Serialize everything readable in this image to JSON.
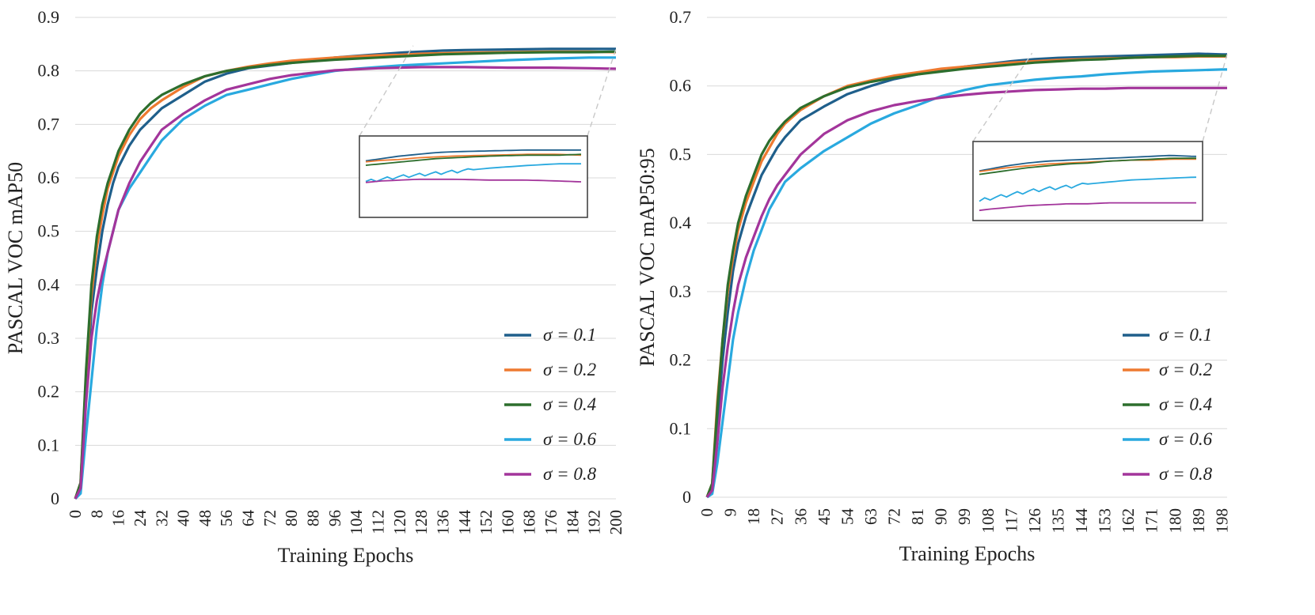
{
  "colors": {
    "s01": "#1f5f8b",
    "s02": "#ee7a30",
    "s04": "#2d6e2d",
    "s06": "#29a9df",
    "s08": "#a3359b",
    "grid": "#d9d9d9",
    "inset_border": "#444444",
    "connector": "#c8c8c8"
  },
  "chart_data": [
    {
      "type": "line",
      "ylabel": "PASCAL VOC mAP50",
      "xlabel": "Training Epochs",
      "ylim": [
        0,
        0.9
      ],
      "xlim": [
        0,
        200
      ],
      "yticks": [
        "0",
        "0.1",
        "0.2",
        "0.3",
        "0.4",
        "0.5",
        "0.6",
        "0.7",
        "0.8",
        "0.9"
      ],
      "xticks": [
        "0",
        "8",
        "16",
        "24",
        "32",
        "40",
        "48",
        "56",
        "64",
        "72",
        "80",
        "88",
        "96",
        "104",
        "112",
        "120",
        "128",
        "136",
        "144",
        "152",
        "160",
        "168",
        "176",
        "184",
        "192",
        "200"
      ],
      "grid": true,
      "legend_position": "bottom-right",
      "inset": {
        "x_range": [
          105,
          200
        ],
        "y_range": [
          0.77,
          0.85
        ]
      },
      "series": [
        {
          "name": "σ = 0.1",
          "color_key": "s01",
          "x": [
            0,
            2,
            4,
            6,
            8,
            10,
            12,
            14,
            16,
            20,
            24,
            28,
            32,
            40,
            48,
            56,
            64,
            72,
            80,
            96,
            104,
            112,
            120,
            128,
            136,
            144,
            160,
            176,
            190,
            200
          ],
          "y": [
            0,
            0.02,
            0.2,
            0.35,
            0.43,
            0.5,
            0.55,
            0.59,
            0.62,
            0.66,
            0.69,
            0.71,
            0.73,
            0.755,
            0.78,
            0.795,
            0.805,
            0.81,
            0.815,
            0.825,
            0.828,
            0.831,
            0.834,
            0.836,
            0.838,
            0.839,
            0.84,
            0.841,
            0.841,
            0.841
          ]
        },
        {
          "name": "σ = 0.2",
          "color_key": "s02",
          "x": [
            0,
            2,
            4,
            6,
            8,
            10,
            12,
            14,
            16,
            20,
            24,
            28,
            32,
            40,
            48,
            56,
            64,
            72,
            80,
            96,
            104,
            112,
            120,
            128,
            136,
            144,
            160,
            176,
            190,
            200
          ],
          "y": [
            0,
            0.03,
            0.23,
            0.38,
            0.47,
            0.53,
            0.58,
            0.61,
            0.64,
            0.68,
            0.71,
            0.73,
            0.745,
            0.77,
            0.79,
            0.8,
            0.808,
            0.814,
            0.819,
            0.825,
            0.827,
            0.829,
            0.83,
            0.832,
            0.833,
            0.834,
            0.835,
            0.836,
            0.836,
            0.835
          ]
        },
        {
          "name": "σ = 0.4",
          "color_key": "s04",
          "x": [
            0,
            2,
            4,
            6,
            8,
            10,
            12,
            14,
            16,
            20,
            24,
            28,
            32,
            40,
            48,
            56,
            64,
            72,
            80,
            96,
            104,
            112,
            120,
            128,
            136,
            144,
            160,
            176,
            190,
            200
          ],
          "y": [
            0,
            0.03,
            0.24,
            0.4,
            0.49,
            0.55,
            0.59,
            0.62,
            0.65,
            0.69,
            0.72,
            0.74,
            0.755,
            0.775,
            0.79,
            0.8,
            0.806,
            0.811,
            0.815,
            0.821,
            0.823,
            0.825,
            0.827,
            0.829,
            0.831,
            0.832,
            0.834,
            0.835,
            0.835,
            0.836
          ]
        },
        {
          "name": "σ = 0.6",
          "color_key": "s06",
          "x": [
            0,
            2,
            4,
            6,
            8,
            10,
            12,
            14,
            16,
            20,
            24,
            28,
            32,
            40,
            48,
            56,
            64,
            72,
            80,
            96,
            104,
            112,
            120,
            128,
            136,
            144,
            160,
            176,
            190,
            200
          ],
          "y": [
            0,
            0.01,
            0.12,
            0.22,
            0.32,
            0.4,
            0.46,
            0.5,
            0.54,
            0.58,
            0.61,
            0.64,
            0.67,
            0.71,
            0.735,
            0.755,
            0.765,
            0.775,
            0.785,
            0.8,
            0.804,
            0.807,
            0.81,
            0.812,
            0.814,
            0.816,
            0.82,
            0.823,
            0.825,
            0.825
          ]
        },
        {
          "name": "σ = 0.8",
          "color_key": "s08",
          "x": [
            0,
            2,
            4,
            6,
            8,
            10,
            12,
            14,
            16,
            20,
            24,
            28,
            32,
            40,
            48,
            56,
            64,
            72,
            80,
            96,
            104,
            112,
            120,
            128,
            136,
            144,
            160,
            176,
            190,
            200
          ],
          "y": [
            0,
            0.02,
            0.18,
            0.3,
            0.37,
            0.42,
            0.46,
            0.5,
            0.54,
            0.59,
            0.63,
            0.66,
            0.69,
            0.72,
            0.745,
            0.765,
            0.775,
            0.785,
            0.792,
            0.801,
            0.803,
            0.805,
            0.806,
            0.807,
            0.807,
            0.807,
            0.806,
            0.806,
            0.805,
            0.804
          ]
        }
      ],
      "legend": [
        "σ = 0.1",
        "σ = 0.2",
        "σ = 0.4",
        "σ = 0.6",
        "σ = 0.8"
      ]
    },
    {
      "type": "line",
      "ylabel": "PASCAL VOC mAP50:95",
      "xlabel": "Training Epochs",
      "ylim": [
        0,
        0.7
      ],
      "xlim": [
        0,
        200
      ],
      "yticks": [
        "0",
        "0.1",
        "0.2",
        "0.3",
        "0.4",
        "0.5",
        "0.6",
        "0.7"
      ],
      "xticks": [
        "0",
        "9",
        "18",
        "27",
        "36",
        "45",
        "54",
        "63",
        "72",
        "81",
        "90",
        "99",
        "108",
        "117",
        "126",
        "135",
        "144",
        "153",
        "162",
        "171",
        "180",
        "189",
        "198"
      ],
      "grid": true,
      "legend_position": "bottom-right",
      "inset": {
        "x_range": [
          105,
          200
        ],
        "y_range": [
          0.585,
          0.655
        ]
      },
      "series": [
        {
          "name": "σ = 0.1",
          "color_key": "s01",
          "x": [
            0,
            2,
            4,
            6,
            8,
            10,
            12,
            15,
            18,
            21,
            24,
            27,
            30,
            36,
            45,
            54,
            63,
            72,
            81,
            90,
            99,
            108,
            117,
            126,
            135,
            144,
            153,
            162,
            171,
            180,
            189,
            198,
            200
          ],
          "y": [
            0,
            0.01,
            0.11,
            0.2,
            0.27,
            0.33,
            0.37,
            0.41,
            0.44,
            0.47,
            0.49,
            0.51,
            0.525,
            0.55,
            0.57,
            0.588,
            0.6,
            0.61,
            0.617,
            0.623,
            0.628,
            0.632,
            0.636,
            0.639,
            0.641,
            0.642,
            0.643,
            0.644,
            0.645,
            0.646,
            0.647,
            0.646,
            0.646
          ]
        },
        {
          "name": "σ = 0.2",
          "color_key": "s02",
          "x": [
            0,
            2,
            4,
            6,
            8,
            10,
            12,
            15,
            18,
            21,
            24,
            27,
            30,
            36,
            45,
            54,
            63,
            72,
            81,
            90,
            99,
            108,
            117,
            126,
            135,
            144,
            153,
            162,
            171,
            180,
            189,
            198,
            200
          ],
          "y": [
            0,
            0.02,
            0.14,
            0.23,
            0.3,
            0.35,
            0.39,
            0.43,
            0.46,
            0.49,
            0.51,
            0.53,
            0.545,
            0.565,
            0.585,
            0.6,
            0.608,
            0.615,
            0.62,
            0.625,
            0.628,
            0.631,
            0.634,
            0.636,
            0.638,
            0.639,
            0.64,
            0.641,
            0.642,
            0.642,
            0.643,
            0.643,
            0.643
          ]
        },
        {
          "name": "σ = 0.4",
          "color_key": "s04",
          "x": [
            0,
            2,
            4,
            6,
            8,
            10,
            12,
            15,
            18,
            21,
            24,
            27,
            30,
            36,
            45,
            54,
            63,
            72,
            81,
            90,
            99,
            108,
            117,
            126,
            135,
            144,
            153,
            162,
            171,
            180,
            189,
            198,
            200
          ],
          "y": [
            0,
            0.02,
            0.13,
            0.23,
            0.31,
            0.36,
            0.4,
            0.44,
            0.47,
            0.5,
            0.52,
            0.535,
            0.548,
            0.568,
            0.585,
            0.598,
            0.606,
            0.612,
            0.617,
            0.621,
            0.625,
            0.628,
            0.631,
            0.634,
            0.636,
            0.638,
            0.639,
            0.641,
            0.642,
            0.643,
            0.644,
            0.644,
            0.644
          ]
        },
        {
          "name": "σ = 0.6",
          "color_key": "s06",
          "x": [
            0,
            2,
            4,
            6,
            8,
            10,
            12,
            15,
            18,
            21,
            24,
            27,
            30,
            36,
            45,
            54,
            63,
            72,
            81,
            90,
            99,
            108,
            117,
            126,
            135,
            144,
            153,
            162,
            171,
            180,
            189,
            198,
            200
          ],
          "y": [
            0,
            0.005,
            0.05,
            0.11,
            0.17,
            0.23,
            0.27,
            0.32,
            0.36,
            0.39,
            0.42,
            0.44,
            0.46,
            0.48,
            0.505,
            0.525,
            0.545,
            0.56,
            0.572,
            0.585,
            0.594,
            0.601,
            0.605,
            0.609,
            0.612,
            0.614,
            0.617,
            0.619,
            0.621,
            0.622,
            0.623,
            0.624,
            0.624
          ]
        },
        {
          "name": "σ = 0.8",
          "color_key": "s08",
          "x": [
            0,
            2,
            4,
            6,
            8,
            10,
            12,
            15,
            18,
            21,
            24,
            27,
            30,
            36,
            45,
            54,
            63,
            72,
            81,
            90,
            99,
            108,
            117,
            126,
            135,
            144,
            153,
            162,
            171,
            180,
            189,
            198,
            200
          ],
          "y": [
            0,
            0.01,
            0.08,
            0.16,
            0.22,
            0.27,
            0.31,
            0.35,
            0.38,
            0.41,
            0.435,
            0.455,
            0.47,
            0.5,
            0.53,
            0.55,
            0.563,
            0.572,
            0.578,
            0.583,
            0.587,
            0.59,
            0.592,
            0.594,
            0.595,
            0.596,
            0.596,
            0.597,
            0.597,
            0.597,
            0.597,
            0.597,
            0.597
          ]
        }
      ],
      "legend": [
        "σ = 0.1",
        "σ = 0.2",
        "σ = 0.4",
        "σ = 0.6",
        "σ = 0.8"
      ]
    }
  ]
}
